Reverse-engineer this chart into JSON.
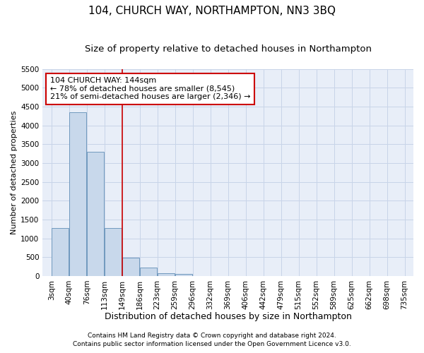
{
  "title": "104, CHURCH WAY, NORTHAMPTON, NN3 3BQ",
  "subtitle": "Size of property relative to detached houses in Northampton",
  "xlabel": "Distribution of detached houses by size in Northampton",
  "ylabel": "Number of detached properties",
  "footnote1": "Contains HM Land Registry data © Crown copyright and database right 2024.",
  "footnote2": "Contains public sector information licensed under the Open Government Licence v3.0.",
  "annotation_title": "104 CHURCH WAY: 144sqm",
  "annotation_line1": "← 78% of detached houses are smaller (8,545)",
  "annotation_line2": "21% of semi-detached houses are larger (2,346) →",
  "property_line_x": 4,
  "bin_labels": [
    "3sqm",
    "40sqm",
    "76sqm",
    "113sqm",
    "149sqm",
    "186sqm",
    "223sqm",
    "259sqm",
    "296sqm",
    "332sqm",
    "369sqm",
    "406sqm",
    "442sqm",
    "479sqm",
    "515sqm",
    "552sqm",
    "589sqm",
    "625sqm",
    "662sqm",
    "698sqm",
    "735sqm"
  ],
  "bar_values": [
    1270,
    4350,
    3300,
    1270,
    480,
    225,
    80,
    55,
    0,
    0,
    0,
    0,
    0,
    0,
    0,
    0,
    0,
    0,
    0,
    0
  ],
  "bar_color": "#c8d8eb",
  "bar_edge_color": "#7099be",
  "grid_color": "#c8d4e8",
  "bg_color": "#e8eef8",
  "vline_color": "#cc0000",
  "annotation_box_color": "#cc0000",
  "ylim": [
    0,
    5500
  ],
  "yticks": [
    0,
    500,
    1000,
    1500,
    2000,
    2500,
    3000,
    3500,
    4000,
    4500,
    5000,
    5500
  ],
  "title_fontsize": 11,
  "subtitle_fontsize": 9.5,
  "xlabel_fontsize": 9,
  "ylabel_fontsize": 8,
  "tick_fontsize": 7.5,
  "annotation_fontsize": 8,
  "footnote_fontsize": 6.5
}
